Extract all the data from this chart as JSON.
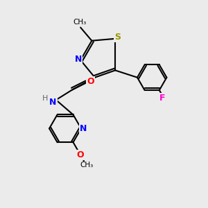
{
  "bg_color": "#ebebeb",
  "atom_colors": {
    "C": "#000000",
    "N": "#0000ff",
    "O": "#ff0000",
    "S": "#999900",
    "F": "#ff00cc",
    "H": "#666666"
  },
  "figsize": [
    3.0,
    3.0
  ],
  "dpi": 100
}
